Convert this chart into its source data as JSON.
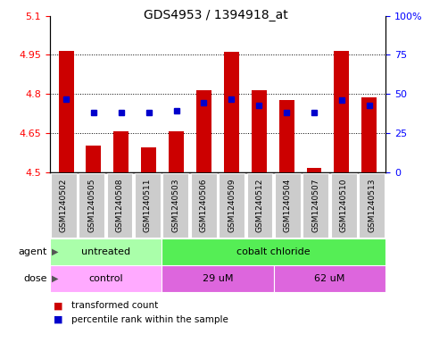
{
  "title": "GDS4953 / 1394918_at",
  "samples": [
    "GSM1240502",
    "GSM1240505",
    "GSM1240508",
    "GSM1240511",
    "GSM1240503",
    "GSM1240506",
    "GSM1240509",
    "GSM1240512",
    "GSM1240504",
    "GSM1240507",
    "GSM1240510",
    "GSM1240513"
  ],
  "red_bars": [
    4.965,
    4.6,
    4.655,
    4.595,
    4.655,
    4.815,
    4.96,
    4.815,
    4.775,
    4.515,
    4.965,
    4.785
  ],
  "blue_dots": [
    4.78,
    4.73,
    4.73,
    4.73,
    4.735,
    4.765,
    4.78,
    4.755,
    4.73,
    4.73,
    4.775,
    4.755
  ],
  "ylim": [
    4.5,
    5.1
  ],
  "yticks_left": [
    4.5,
    4.65,
    4.8,
    4.95,
    5.1
  ],
  "yticks_right_vals": [
    0,
    25,
    50,
    75,
    100
  ],
  "yticks_right_labels": [
    "0",
    "25",
    "50",
    "75",
    "100%"
  ],
  "bar_bottom": 4.5,
  "bar_color": "#cc0000",
  "dot_color": "#0000cc",
  "agent_groups": [
    {
      "label": "untreated",
      "start": 0,
      "end": 4,
      "color": "#aaffaa"
    },
    {
      "label": "cobalt chloride",
      "start": 4,
      "end": 12,
      "color": "#55ee55"
    }
  ],
  "dose_groups": [
    {
      "label": "control",
      "start": 0,
      "end": 4,
      "color": "#ffaaff"
    },
    {
      "label": "29 uM",
      "start": 4,
      "end": 8,
      "color": "#dd66dd"
    },
    {
      "label": "62 uM",
      "start": 8,
      "end": 12,
      "color": "#dd66dd"
    }
  ],
  "legend_red_label": "transformed count",
  "legend_blue_label": "percentile rank within the sample",
  "agent_label": "agent",
  "dose_label": "dose",
  "title_fontsize": 10,
  "tick_fontsize": 8,
  "sample_fontsize": 6.5,
  "annot_fontsize": 8,
  "legend_fontsize": 7.5
}
